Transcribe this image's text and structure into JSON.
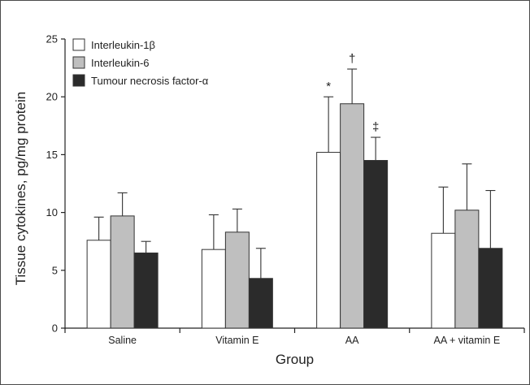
{
  "chart_data": {
    "type": "bar",
    "xlabel": "Group",
    "ylabel": "Tissue cytokines, pg/mg protein",
    "ylim": [
      0,
      25
    ],
    "yticks": [
      "0",
      "5",
      "10",
      "15",
      "20",
      "25"
    ],
    "grid": false,
    "legend_position": "top-left",
    "categories": [
      "Saline",
      "Vitamin E",
      "AA",
      "AA + vitamin E"
    ],
    "series": [
      {
        "name": "Interleukin-1β",
        "color": "#ffffff",
        "values": [
          7.6,
          6.8,
          15.2,
          8.2
        ],
        "errors": [
          2.0,
          3.0,
          4.8,
          4.0
        ]
      },
      {
        "name": "Interleukin-6",
        "color": "#bfbfbf",
        "values": [
          9.7,
          8.3,
          19.4,
          10.2
        ],
        "errors": [
          2.0,
          2.0,
          3.0,
          4.0
        ]
      },
      {
        "name": "Tumour necrosis factor-α",
        "color": "#2b2b2b",
        "values": [
          6.5,
          4.3,
          14.5,
          6.9
        ],
        "errors": [
          1.0,
          2.6,
          2.0,
          5.0
        ]
      }
    ],
    "annotations": [
      {
        "text": "*",
        "category": "AA",
        "series": "Interleukin-1β"
      },
      {
        "text": "†",
        "category": "AA",
        "series": "Interleukin-6"
      },
      {
        "text": "‡",
        "category": "AA",
        "series": "Tumour necrosis factor-α"
      }
    ]
  }
}
